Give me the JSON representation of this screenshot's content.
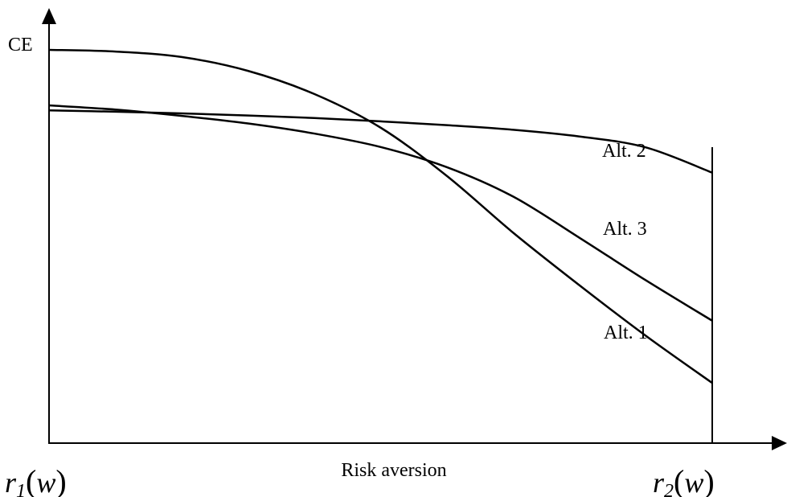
{
  "chart_data": {
    "type": "line",
    "title": "",
    "ylabel": "CE",
    "xlabel": "Risk aversion",
    "x_tick_labels": {
      "start": {
        "symbol": "r",
        "subscript": "1",
        "argument": "w"
      },
      "end": {
        "symbol": "r",
        "subscript": "2",
        "argument": "w"
      }
    },
    "ticks_numeric": false,
    "grid": false,
    "legend": "none (series labelled directly at right end)",
    "x": [
      0,
      0.1,
      0.2,
      0.3,
      0.4,
      0.5,
      0.6,
      0.7,
      0.8,
      0.9,
      1.0
    ],
    "ylim": [
      0,
      100
    ],
    "series": [
      {
        "name": "Alt. 1",
        "values": [
          93.5,
          93.1,
          91.8,
          88.5,
          83.0,
          75.0,
          63.5,
          50.0,
          37.5,
          25.5,
          14.3
        ]
      },
      {
        "name": "Alt. 2",
        "values": [
          79.1,
          78.8,
          78.4,
          77.9,
          77.3,
          76.5,
          75.6,
          74.5,
          72.9,
          70.3,
          64.3
        ]
      },
      {
        "name": "Alt. 3",
        "values": [
          80.3,
          79.3,
          77.8,
          76.0,
          73.6,
          70.4,
          65.6,
          58.6,
          48.8,
          38.7,
          29.1
        ]
      }
    ],
    "colors": {
      "lines": "#000000",
      "axes": "#000000"
    }
  }
}
